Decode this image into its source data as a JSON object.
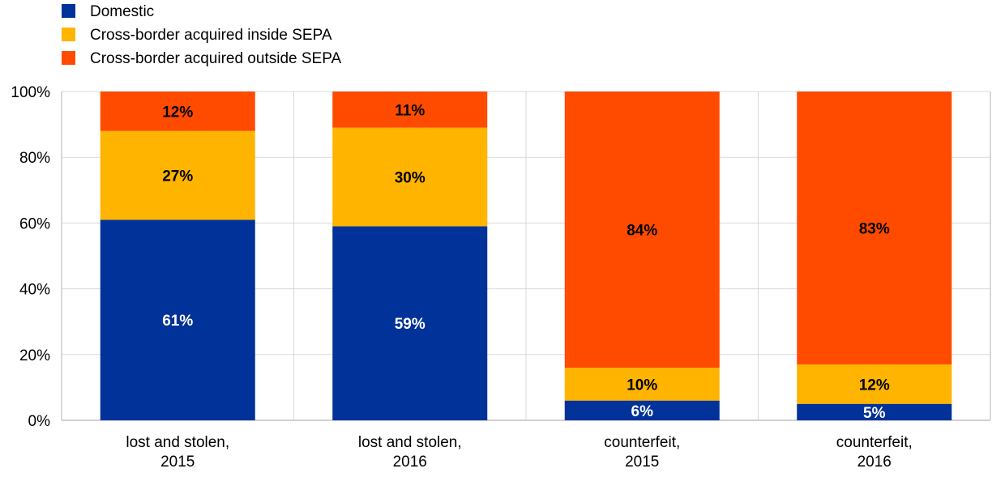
{
  "chart_data": {
    "type": "bar",
    "stacked": true,
    "title": "",
    "xlabel": "",
    "ylabel": "",
    "ylim": [
      0,
      100
    ],
    "y_ticks": [
      "0%",
      "20%",
      "40%",
      "60%",
      "80%",
      "100%"
    ],
    "grid": true,
    "legend_placement": "top-left",
    "categories": [
      [
        "lost and stolen,",
        "2015"
      ],
      [
        "lost and stolen,",
        "2016"
      ],
      [
        "counterfeit,",
        "2015"
      ],
      [
        "counterfeit,",
        "2016"
      ]
    ],
    "series": [
      {
        "name": "Domestic",
        "color": "#003299",
        "label_color": "#ffffff",
        "values": [
          61,
          59,
          6,
          5
        ],
        "labels": [
          "61%",
          "59%",
          "6%",
          "5%"
        ]
      },
      {
        "name": "Cross-border acquired inside SEPA",
        "color": "#FFB400",
        "label_color": "#000000",
        "values": [
          27,
          30,
          10,
          12
        ],
        "labels": [
          "27%",
          "30%",
          "10%",
          "12%"
        ]
      },
      {
        "name": "Cross-border acquired outside SEPA",
        "color": "#FF4B00",
        "label_color": "#000000",
        "values": [
          12,
          11,
          84,
          83
        ],
        "labels": [
          "12%",
          "11%",
          "84%",
          "83%"
        ]
      }
    ]
  }
}
